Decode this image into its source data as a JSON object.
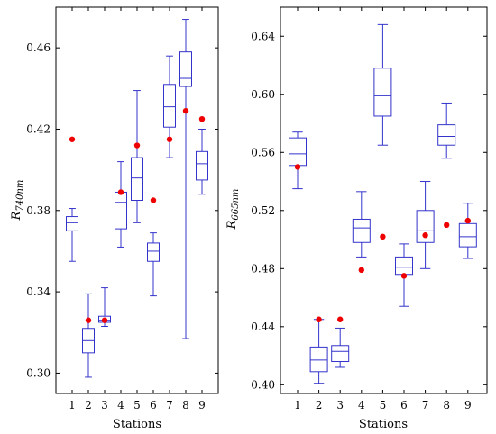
{
  "chart_data": [
    {
      "type": "box",
      "xlabel": "Stations",
      "ylabel_main": "R",
      "ylabel_sub": "740nm",
      "ylim": [
        0.29,
        0.48
      ],
      "categories": [
        "1",
        "2",
        "3",
        "4",
        "5",
        "6",
        "7",
        "8",
        "9"
      ],
      "ytick_labels": [
        "0.30",
        "0.34",
        "0.38",
        "0.42",
        "0.46"
      ],
      "boxes": [
        {
          "station": "1",
          "min": 0.355,
          "q1": 0.37,
          "median": 0.374,
          "q3": 0.377,
          "max": 0.381
        },
        {
          "station": "2",
          "min": 0.298,
          "q1": 0.31,
          "median": 0.316,
          "q3": 0.322,
          "max": 0.339
        },
        {
          "station": "3",
          "min": 0.323,
          "q1": 0.325,
          "median": 0.326,
          "q3": 0.328,
          "max": 0.342
        },
        {
          "station": "4",
          "min": 0.362,
          "q1": 0.371,
          "median": 0.384,
          "q3": 0.389,
          "max": 0.404
        },
        {
          "station": "5",
          "min": 0.374,
          "q1": 0.385,
          "median": 0.396,
          "q3": 0.406,
          "max": 0.439
        },
        {
          "station": "6",
          "min": 0.338,
          "q1": 0.355,
          "median": 0.36,
          "q3": 0.364,
          "max": 0.369
        },
        {
          "station": "7",
          "min": 0.406,
          "q1": 0.421,
          "median": 0.431,
          "q3": 0.442,
          "max": 0.456
        },
        {
          "station": "8",
          "min": 0.317,
          "q1": 0.441,
          "median": 0.445,
          "q3": 0.458,
          "max": 0.474
        },
        {
          "station": "9",
          "min": 0.388,
          "q1": 0.395,
          "median": 0.403,
          "q3": 0.409,
          "max": 0.42
        }
      ],
      "points": [
        0.415,
        0.326,
        0.326,
        0.389,
        0.412,
        0.385,
        0.415,
        0.429,
        0.425
      ],
      "colors": {
        "box": "#3333cc",
        "point": "#ee0000"
      }
    },
    {
      "type": "box",
      "xlabel": "Stations",
      "ylabel_main": "R",
      "ylabel_sub": "665nm",
      "ylim": [
        0.394,
        0.66
      ],
      "categories": [
        "1",
        "2",
        "3",
        "4",
        "5",
        "6",
        "7",
        "8",
        "9"
      ],
      "ytick_labels": [
        "0.40",
        "0.44",
        "0.48",
        "0.52",
        "0.56",
        "0.60",
        "0.64"
      ],
      "boxes": [
        {
          "station": "1",
          "min": 0.535,
          "q1": 0.551,
          "median": 0.559,
          "q3": 0.57,
          "max": 0.574
        },
        {
          "station": "2",
          "min": 0.401,
          "q1": 0.409,
          "median": 0.417,
          "q3": 0.426,
          "max": 0.445
        },
        {
          "station": "3",
          "min": 0.412,
          "q1": 0.416,
          "median": 0.423,
          "q3": 0.427,
          "max": 0.439
        },
        {
          "station": "4",
          "min": 0.488,
          "q1": 0.498,
          "median": 0.508,
          "q3": 0.514,
          "max": 0.533
        },
        {
          "station": "5",
          "min": 0.565,
          "q1": 0.585,
          "median": 0.599,
          "q3": 0.618,
          "max": 0.648
        },
        {
          "station": "6",
          "min": 0.454,
          "q1": 0.476,
          "median": 0.481,
          "q3": 0.488,
          "max": 0.497
        },
        {
          "station": "7",
          "min": 0.48,
          "q1": 0.498,
          "median": 0.506,
          "q3": 0.52,
          "max": 0.54
        },
        {
          "station": "8",
          "min": 0.556,
          "q1": 0.565,
          "median": 0.571,
          "q3": 0.579,
          "max": 0.594
        },
        {
          "station": "9",
          "min": 0.487,
          "q1": 0.495,
          "median": 0.502,
          "q3": 0.511,
          "max": 0.525
        }
      ],
      "points": [
        0.55,
        0.445,
        0.445,
        0.479,
        0.502,
        0.475,
        0.503,
        0.51,
        0.513
      ],
      "colors": {
        "box": "#3333cc",
        "point": "#ee0000"
      }
    }
  ]
}
